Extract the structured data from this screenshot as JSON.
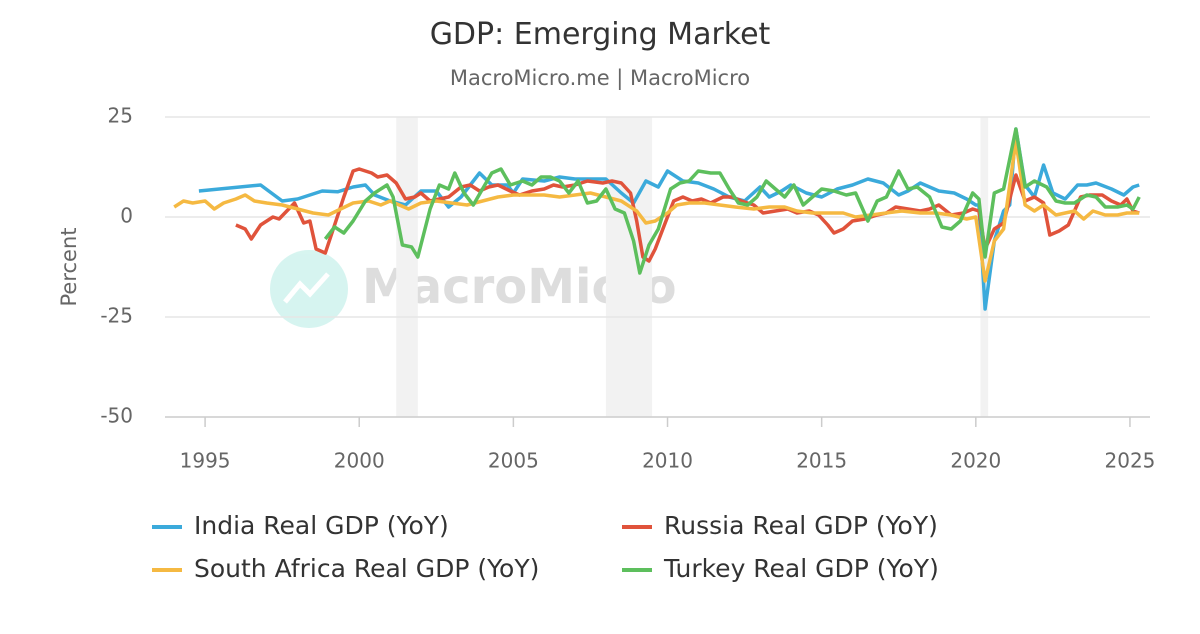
{
  "chart_data": {
    "type": "line",
    "title": "GDP: Emerging Market",
    "subtitle": "MacroMicro.me | MacroMicro",
    "y_label": "Percent",
    "watermark": "MacroMicro",
    "xlim": [
      1993.7,
      2025.65
    ],
    "xticks": [
      1995,
      2000,
      2005,
      2010,
      2015,
      2020,
      2025
    ],
    "ylim": [
      -50,
      25
    ],
    "yticks": [
      -50,
      -25,
      0,
      25
    ],
    "grid": true,
    "shaded_periods": [
      [
        2001.2,
        2001.9
      ],
      [
        2008.0,
        2009.5
      ],
      [
        2020.15,
        2020.4
      ]
    ],
    "series": [
      {
        "name": "India Real GDP (YoY)",
        "color": "#3baadb",
        "x": [
          1994.8,
          1996.8,
          1997.5,
          1998,
          1998.8,
          1999.3,
          1999.8,
          2000.2,
          2000.5,
          2001,
          2001.5,
          2002,
          2002.5,
          2002.9,
          2003.3,
          2003.9,
          2004.3,
          2004.8,
          2005,
          2005.3,
          2006,
          2006.5,
          2007,
          2007.5,
          2008,
          2008.5,
          2008.9,
          2009.3,
          2009.7,
          2010,
          2010.5,
          2011,
          2011.5,
          2012,
          2012.5,
          2013,
          2013.3,
          2013.7,
          2014,
          2014.5,
          2015,
          2015.5,
          2016,
          2016.5,
          2017,
          2017.5,
          2017.8,
          2018.2,
          2018.8,
          2019.3,
          2019.7,
          2020,
          2020.1,
          2020.3,
          2020.6,
          2020.9,
          2021.1,
          2021.3,
          2021.6,
          2021.9,
          2022.2,
          2022.5,
          2022.9,
          2023.3,
          2023.6,
          2023.9,
          2024.4,
          2024.8,
          2025.1,
          2025.3
        ],
        "values": [
          6.5,
          8,
          4,
          4.5,
          6.5,
          6.3,
          7.5,
          8,
          5.5,
          4,
          3,
          6.5,
          6.5,
          2.5,
          5,
          11,
          8,
          8,
          6,
          9.5,
          9,
          10,
          9.5,
          9.5,
          9.5,
          6,
          3.5,
          9,
          7.5,
          11.5,
          9,
          8.5,
          7,
          5,
          4,
          7.5,
          5,
          6.5,
          8,
          6,
          5,
          7,
          8,
          9.5,
          8.5,
          5.5,
          6.5,
          8.5,
          6.5,
          6,
          4.5,
          3,
          3,
          -23,
          -6,
          1.5,
          3,
          22,
          8,
          5,
          13,
          6,
          4.5,
          8,
          8,
          8.5,
          7,
          5.5,
          7.5,
          8
        ]
      },
      {
        "name": "Russia Real GDP (YoY)",
        "color": "#e0533b",
        "x": [
          1996,
          1996.3,
          1996.5,
          1996.8,
          1997.2,
          1997.4,
          1997.9,
          1998.2,
          1998.4,
          1998.6,
          1998.9,
          1999.2,
          1999.5,
          1999.8,
          2000,
          2000.4,
          2000.6,
          2000.9,
          2001.2,
          2001.5,
          2001.8,
          2002,
          2002.3,
          2002.6,
          2002.9,
          2003.3,
          2003.6,
          2003.9,
          2004.2,
          2004.5,
          2004.9,
          2005.2,
          2005.6,
          2006,
          2006.3,
          2006.6,
          2007,
          2007.4,
          2007.9,
          2008.2,
          2008.5,
          2008.8,
          2009,
          2009.2,
          2009.4,
          2009.6,
          2009.9,
          2010.2,
          2010.5,
          2010.8,
          2011.1,
          2011.4,
          2011.8,
          2012.1,
          2012.4,
          2012.8,
          2013.1,
          2013.5,
          2013.9,
          2014.2,
          2014.6,
          2014.9,
          2015.2,
          2015.4,
          2015.7,
          2016,
          2016.4,
          2016.8,
          2017.1,
          2017.4,
          2017.8,
          2018.2,
          2018.5,
          2018.8,
          2019.2,
          2019.6,
          2019.9,
          2020.1,
          2020.3,
          2020.6,
          2020.9,
          2021.3,
          2021.6,
          2021.9,
          2022.2,
          2022.4,
          2022.7,
          2023,
          2023.4,
          2023.7,
          2024.1,
          2024.4,
          2024.7,
          2024.9,
          2025.1,
          2025.3
        ],
        "values": [
          -2,
          -3,
          -5.5,
          -2,
          0,
          -0.5,
          3.5,
          -1.5,
          -1,
          -8,
          -9,
          -2,
          5,
          11.5,
          12,
          11,
          10,
          10.5,
          8.5,
          4.5,
          5,
          6,
          4,
          4.5,
          5,
          7.5,
          8,
          6.5,
          7.5,
          8,
          6.5,
          5.5,
          6.5,
          7,
          8,
          7.5,
          8,
          9,
          8.5,
          9,
          8.5,
          6,
          -1,
          -10,
          -11,
          -8,
          -2,
          4,
          5,
          4,
          4.5,
          3.5,
          5,
          5,
          4,
          3,
          1,
          1.5,
          2,
          1,
          1.5,
          0.5,
          -2,
          -4,
          -3,
          -1,
          -0.5,
          0.5,
          1,
          2.5,
          2,
          1.5,
          2,
          3,
          0.5,
          1,
          2,
          1.5,
          -8,
          -3,
          -1.5,
          10.5,
          4,
          5,
          3.5,
          -4.5,
          -3.5,
          -2,
          5,
          5.5,
          5.5,
          4,
          3,
          4.5,
          1.5,
          1
        ]
      },
      {
        "name": "South Africa Real GDP (YoY)",
        "color": "#f5b942",
        "x": [
          1994,
          1994.3,
          1994.6,
          1995,
          1995.3,
          1995.6,
          1996,
          1996.3,
          1996.6,
          1997,
          1997.5,
          1998,
          1998.5,
          1999,
          1999.4,
          1999.8,
          2000.3,
          2000.7,
          2001,
          2001.6,
          2002,
          2002.5,
          2003,
          2003.5,
          2004,
          2004.5,
          2005,
          2005.5,
          2006,
          2006.5,
          2007,
          2007.5,
          2008,
          2008.5,
          2009,
          2009.3,
          2009.6,
          2010,
          2010.3,
          2010.7,
          2011.2,
          2011.7,
          2012.2,
          2012.8,
          2013.3,
          2013.8,
          2014.2,
          2014.7,
          2015.2,
          2015.7,
          2016.1,
          2016.6,
          2017.1,
          2017.6,
          2018.2,
          2018.7,
          2019.2,
          2019.7,
          2020,
          2020.3,
          2020.6,
          2020.9,
          2021.3,
          2021.6,
          2021.9,
          2022.2,
          2022.6,
          2022.9,
          2023.2,
          2023.5,
          2023.8,
          2024.2,
          2024.6,
          2024.9,
          2025.3
        ],
        "values": [
          2.5,
          4,
          3.5,
          4,
          2,
          3.5,
          4.5,
          5.5,
          4,
          3.5,
          3,
          2,
          1,
          0.5,
          2,
          3.5,
          4,
          3,
          4,
          2,
          3.5,
          4,
          3.5,
          3,
          4,
          5,
          5.5,
          5.5,
          5.5,
          5,
          5.5,
          6,
          5,
          4,
          1.5,
          -1.5,
          -1,
          1,
          3,
          3.5,
          3.5,
          3,
          2.5,
          2,
          2.5,
          2.5,
          1.5,
          1,
          1,
          1,
          0,
          0.5,
          1,
          1.5,
          1,
          1,
          0.5,
          -0.5,
          0,
          -16,
          -6,
          -3,
          19,
          3,
          1.5,
          3,
          0.5,
          1,
          1.5,
          -0.5,
          1.5,
          0.5,
          0.5,
          1,
          1
        ]
      },
      {
        "name": "Turkey Real GDP (YoY)",
        "color": "#5dbf5d",
        "x": [
          1998.9,
          1999.2,
          1999.5,
          1999.8,
          2000.2,
          2000.5,
          2000.9,
          2001.1,
          2001.4,
          2001.7,
          2001.9,
          2002.3,
          2002.6,
          2002.9,
          2003.1,
          2003.4,
          2003.7,
          2004,
          2004.3,
          2004.6,
          2004.9,
          2005.3,
          2005.6,
          2005.9,
          2006.2,
          2006.5,
          2006.8,
          2007.1,
          2007.4,
          2007.7,
          2008,
          2008.3,
          2008.6,
          2008.9,
          2009.1,
          2009.4,
          2009.7,
          2010.1,
          2010.4,
          2010.7,
          2011,
          2011.4,
          2011.7,
          2012,
          2012.3,
          2012.6,
          2012.9,
          2013.2,
          2013.5,
          2013.8,
          2014.1,
          2014.4,
          2014.7,
          2015,
          2015.4,
          2015.8,
          2016.1,
          2016.5,
          2016.8,
          2017.1,
          2017.5,
          2017.8,
          2018.1,
          2018.5,
          2018.9,
          2019.2,
          2019.5,
          2019.9,
          2020.1,
          2020.3,
          2020.6,
          2020.9,
          2021.3,
          2021.6,
          2021.9,
          2022.3,
          2022.6,
          2022.9,
          2023.2,
          2023.6,
          2023.9,
          2024.2,
          2024.6,
          2024.9,
          2025.1,
          2025.3
        ],
        "values": [
          -5.5,
          -2.5,
          -4,
          -1,
          4,
          6,
          8,
          5,
          -7,
          -7.5,
          -10,
          2,
          8,
          7,
          11,
          6,
          3,
          7,
          11,
          12,
          8,
          9,
          8,
          10,
          10,
          9,
          6,
          9,
          3.5,
          4,
          7,
          2,
          1,
          -6,
          -14,
          -7,
          -3,
          7,
          8.5,
          9,
          11.5,
          11,
          11,
          7,
          3.5,
          3,
          5,
          9,
          7,
          5,
          8,
          3,
          5,
          7,
          6.5,
          5.5,
          6,
          -1,
          4,
          5,
          11.5,
          7,
          7.5,
          5,
          -2.5,
          -3,
          -1,
          6,
          4.5,
          -10,
          6,
          7,
          22,
          7.5,
          9,
          7.5,
          4,
          3.5,
          3.5,
          5.5,
          5,
          2.5,
          2.5,
          3,
          2,
          5
        ]
      }
    ]
  }
}
